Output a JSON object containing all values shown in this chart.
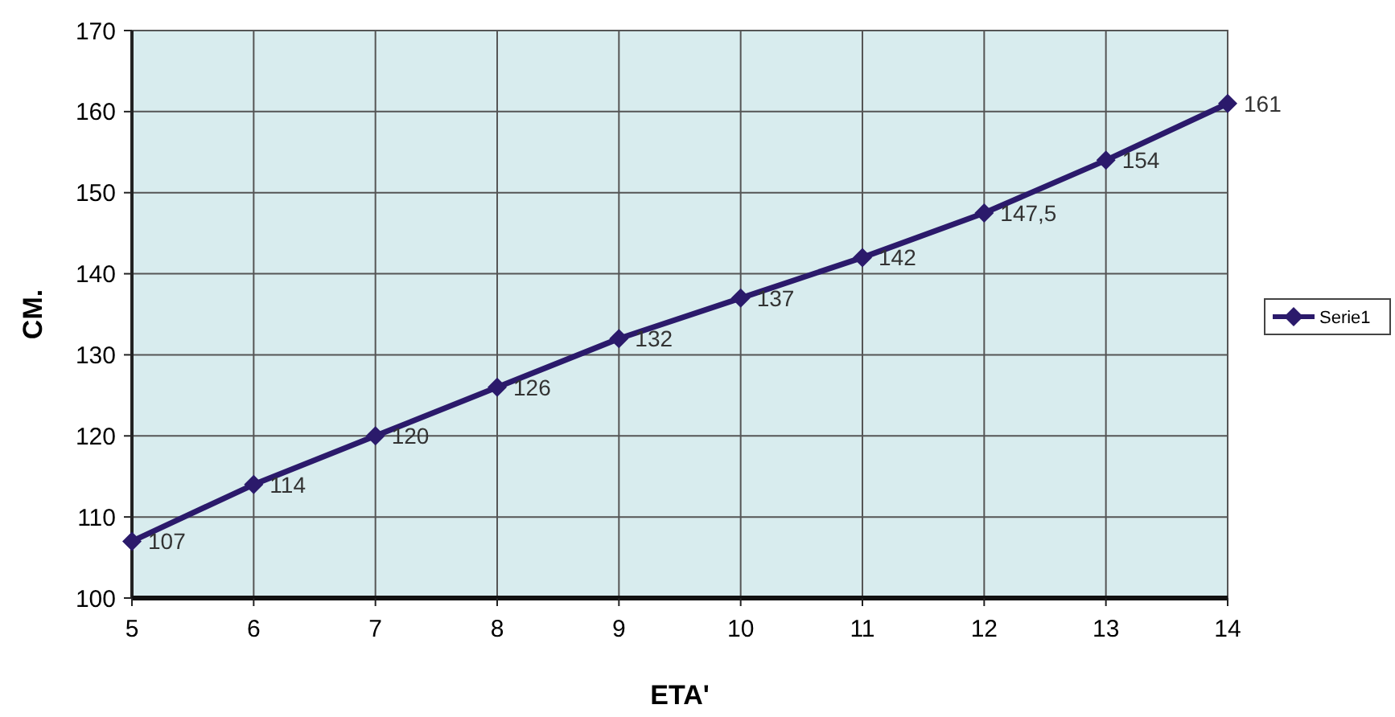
{
  "chart_data": {
    "type": "line",
    "xlabel": "ETA'",
    "ylabel": "CM.",
    "x": [
      5,
      6,
      7,
      8,
      9,
      10,
      11,
      12,
      13,
      14
    ],
    "series": [
      {
        "name": "Serie1",
        "color": "#2b1a6b",
        "values": [
          107,
          114,
          120,
          126,
          132,
          137,
          142,
          147.5,
          154,
          161
        ],
        "value_labels": [
          "107",
          "114",
          "120",
          "126",
          "132",
          "137",
          "142",
          "147,5",
          "154",
          "161"
        ]
      }
    ],
    "xlim": [
      5,
      14
    ],
    "xticks": [
      5,
      6,
      7,
      8,
      9,
      10,
      11,
      12,
      13,
      14
    ],
    "ylim": [
      100,
      170
    ],
    "yticks": [
      100,
      110,
      120,
      130,
      140,
      150,
      160,
      170
    ],
    "grid": true,
    "legend": "right",
    "marker": "diamond",
    "line_style": "solid"
  }
}
